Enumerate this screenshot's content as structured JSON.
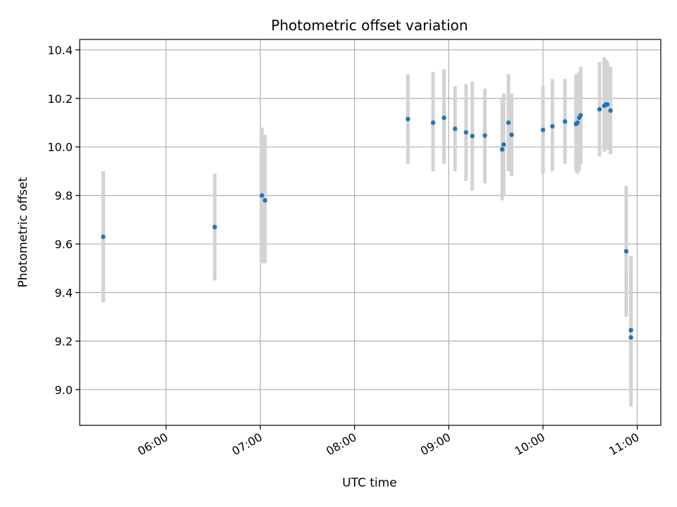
{
  "chart_data": {
    "type": "scatter",
    "title": "Photometric offset variation",
    "xlabel": "UTC time",
    "ylabel": "Photometric offset",
    "x_is_time": true,
    "xlim": [
      "05:05",
      "11:15"
    ],
    "ylim": [
      8.853,
      10.443
    ],
    "xticks": [
      "06:00",
      "07:00",
      "08:00",
      "09:00",
      "10:00",
      "11:00"
    ],
    "yticks": [
      9.0,
      9.2,
      9.4,
      9.6,
      9.8,
      10.0,
      10.2,
      10.4
    ],
    "grid": true,
    "point_color": "#1f77b4",
    "errorbar_color": "#d3d3d3",
    "series": [
      {
        "points": [
          {
            "x": "05:20",
            "y": 9.63,
            "lo": 9.36,
            "hi": 9.9
          },
          {
            "x": "06:31",
            "y": 9.67,
            "lo": 9.45,
            "hi": 9.89
          },
          {
            "x": "07:01",
            "y": 9.8,
            "lo": 9.52,
            "hi": 10.08
          },
          {
            "x": "07:03",
            "y": 9.78,
            "lo": 9.52,
            "hi": 10.05
          },
          {
            "x": "08:34",
            "y": 10.115,
            "lo": 9.93,
            "hi": 10.3
          },
          {
            "x": "08:50",
            "y": 10.1,
            "lo": 9.9,
            "hi": 10.31
          },
          {
            "x": "08:57",
            "y": 10.12,
            "lo": 9.93,
            "hi": 10.32
          },
          {
            "x": "09:04",
            "y": 10.075,
            "lo": 9.9,
            "hi": 10.25
          },
          {
            "x": "09:11",
            "y": 10.06,
            "lo": 9.86,
            "hi": 10.26
          },
          {
            "x": "09:15",
            "y": 10.045,
            "lo": 9.82,
            "hi": 10.27
          },
          {
            "x": "09:23",
            "y": 10.047,
            "lo": 9.85,
            "hi": 10.24
          },
          {
            "x": "09:34",
            "y": 9.99,
            "lo": 9.78,
            "hi": 10.2
          },
          {
            "x": "09:35",
            "y": 10.01,
            "lo": 9.8,
            "hi": 10.22
          },
          {
            "x": "09:38",
            "y": 10.1,
            "lo": 9.9,
            "hi": 10.3
          },
          {
            "x": "09:40",
            "y": 10.05,
            "lo": 9.88,
            "hi": 10.22
          },
          {
            "x": "10:00",
            "y": 10.07,
            "lo": 9.89,
            "hi": 10.25
          },
          {
            "x": "10:06",
            "y": 10.085,
            "lo": 9.9,
            "hi": 10.28
          },
          {
            "x": "10:14",
            "y": 10.105,
            "lo": 9.93,
            "hi": 10.28
          },
          {
            "x": "10:21",
            "y": 10.095,
            "lo": 9.9,
            "hi": 10.3
          },
          {
            "x": "10:22",
            "y": 10.1,
            "lo": 9.89,
            "hi": 10.3
          },
          {
            "x": "10:23",
            "y": 10.12,
            "lo": 9.9,
            "hi": 10.31
          },
          {
            "x": "10:24",
            "y": 10.13,
            "lo": 9.93,
            "hi": 10.33
          },
          {
            "x": "10:36",
            "y": 10.155,
            "lo": 9.96,
            "hi": 10.35
          },
          {
            "x": "10:39",
            "y": 10.17,
            "lo": 9.98,
            "hi": 10.37
          },
          {
            "x": "10:40",
            "y": 10.175,
            "lo": 9.99,
            "hi": 10.36
          },
          {
            "x": "10:41",
            "y": 10.175,
            "lo": 9.99,
            "hi": 10.35
          },
          {
            "x": "10:43",
            "y": 10.15,
            "lo": 9.97,
            "hi": 10.33
          },
          {
            "x": "10:53",
            "y": 9.57,
            "lo": 9.3,
            "hi": 9.84
          },
          {
            "x": "10:56",
            "y": 9.245,
            "lo": 8.99,
            "hi": 9.5
          },
          {
            "x": "10:56",
            "y": 9.215,
            "lo": 8.93,
            "hi": 9.55
          }
        ]
      }
    ]
  }
}
